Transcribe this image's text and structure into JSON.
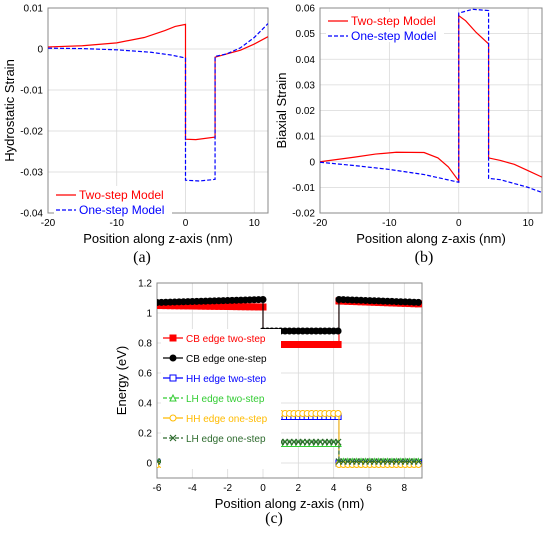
{
  "chart_data": [
    {
      "id": "a",
      "type": "line",
      "panel_label": "(a)",
      "xlabel": "Position along z-axis (nm)",
      "ylabel": "Hydrostatic Strain",
      "xlim": [
        -20,
        12
      ],
      "ylim": [
        -0.04,
        0.01
      ],
      "xticks": [
        -20,
        -10,
        0,
        10
      ],
      "yticks": [
        -0.04,
        -0.03,
        -0.02,
        -0.01,
        0,
        0.01
      ],
      "yticklabels": [
        "-0.04",
        "-0.03",
        "-0.02",
        "-0.01",
        "0",
        "0.01"
      ],
      "grid": true,
      "legend_position": "bottom-left",
      "series": [
        {
          "name": "Two-step Model",
          "color": "#ff0000",
          "dash": "solid",
          "points": [
            [
              -20,
              0.0005
            ],
            [
              -15,
              0.0008
            ],
            [
              -10,
              0.0015
            ],
            [
              -6,
              0.0028
            ],
            [
              -3,
              0.0045
            ],
            [
              -1.5,
              0.0055
            ],
            [
              0,
              0.006
            ],
            [
              0,
              -0.022
            ],
            [
              1.5,
              -0.0221
            ],
            [
              4.3,
              -0.0215
            ],
            [
              4.3,
              -0.002
            ],
            [
              6,
              -0.0012
            ],
            [
              8,
              -0.0003
            ],
            [
              10,
              0.0012
            ],
            [
              12,
              0.003
            ]
          ]
        },
        {
          "name": "One-step Model",
          "color": "#0000ff",
          "dash": "dashed",
          "points": [
            [
              -20,
              0.0002
            ],
            [
              -15,
              0.0001
            ],
            [
              -10,
              -0.0002
            ],
            [
              -5,
              -0.0008
            ],
            [
              -2,
              -0.0015
            ],
            [
              0,
              -0.0022
            ],
            [
              0,
              -0.032
            ],
            [
              2,
              -0.0322
            ],
            [
              4.3,
              -0.0318
            ],
            [
              4.3,
              -0.0018
            ],
            [
              6,
              -0.0012
            ],
            [
              8,
              0.0003
            ],
            [
              10,
              0.0028
            ],
            [
              12,
              0.0062
            ]
          ]
        }
      ]
    },
    {
      "id": "b",
      "type": "line",
      "panel_label": "(b)",
      "xlabel": "Position along z-axis (nm)",
      "ylabel": "Biaxial Strain",
      "xlim": [
        -20,
        12
      ],
      "ylim": [
        -0.02,
        0.06
      ],
      "xticks": [
        -20,
        -10,
        0,
        10
      ],
      "yticks": [
        -0.02,
        -0.01,
        0,
        0.01,
        0.02,
        0.03,
        0.04,
        0.05,
        0.06
      ],
      "yticklabels": [
        "-0.02",
        "-0.01",
        "0",
        "0.01",
        "0.02",
        "0.03",
        "0.04",
        "0.05",
        "0.06"
      ],
      "grid": true,
      "legend_position": "top-left",
      "series": [
        {
          "name": "Two-step Model",
          "color": "#ff0000",
          "dash": "solid",
          "points": [
            [
              -20,
              0.0
            ],
            [
              -15,
              0.0018
            ],
            [
              -12,
              0.003
            ],
            [
              -9,
              0.0037
            ],
            [
              -5,
              0.0036
            ],
            [
              -3,
              0.0015
            ],
            [
              -1.5,
              -0.002
            ],
            [
              0,
              -0.0075
            ],
            [
              0,
              0.057
            ],
            [
              1,
              0.055
            ],
            [
              2.5,
              0.0505
            ],
            [
              4.3,
              0.046
            ],
            [
              4.3,
              0.0015
            ],
            [
              6,
              0.0005
            ],
            [
              8,
              -0.001
            ],
            [
              10,
              -0.0035
            ],
            [
              12,
              -0.006
            ]
          ]
        },
        {
          "name": "One-step Model",
          "color": "#0000ff",
          "dash": "dashed",
          "points": [
            [
              -20,
              -0.0002
            ],
            [
              -15,
              -0.0015
            ],
            [
              -10,
              -0.003
            ],
            [
              -5,
              -0.005
            ],
            [
              -2,
              -0.0068
            ],
            [
              0,
              -0.008
            ],
            [
              0,
              0.058
            ],
            [
              2,
              0.0595
            ],
            [
              4.3,
              0.059
            ],
            [
              4.3,
              -0.0065
            ],
            [
              6,
              -0.007
            ],
            [
              8,
              -0.0085
            ],
            [
              10,
              -0.01
            ],
            [
              12,
              -0.012
            ]
          ]
        }
      ]
    },
    {
      "id": "c",
      "type": "line",
      "panel_label": "(c)",
      "xlabel": "Position along z-axis (nm)",
      "ylabel": "Energy (eV)",
      "xlim": [
        -6,
        9
      ],
      "ylim": [
        -0.1,
        1.2
      ],
      "xticks": [
        -6,
        -4,
        -2,
        0,
        2,
        4,
        6,
        8
      ],
      "yticks": [
        0,
        0.2,
        0.4,
        0.6,
        0.8,
        1,
        1.2
      ],
      "yticklabels": [
        "0",
        "0.2",
        "0.4",
        "0.6",
        "0.8",
        "1",
        "1.2"
      ],
      "grid": true,
      "legend_position": "left",
      "series": [
        {
          "name": "CB edge two-step",
          "color": "#ff0000",
          "marker": "square",
          "marker_fill": "#ff0000",
          "dash": "solid",
          "segments": [
            [
              [
                -6,
                1.05
              ],
              [
                0,
                1.04
              ]
            ],
            [
              [
                0,
                0.79
              ],
              [
                4.3,
                0.79
              ]
            ],
            [
              [
                4.3,
                1.08
              ],
              [
                9,
                1.06
              ]
            ]
          ]
        },
        {
          "name": "CB edge one-step",
          "color": "#000000",
          "marker": "circle",
          "marker_fill": "#000000",
          "dash": "solid",
          "segments": [
            [
              [
                -6,
                1.07
              ],
              [
                0,
                1.09
              ]
            ],
            [
              [
                0,
                0.88
              ],
              [
                4.3,
                0.88
              ]
            ],
            [
              [
                4.3,
                1.09
              ],
              [
                9,
                1.07
              ]
            ]
          ]
        },
        {
          "name": "HH edge two-step",
          "color": "#0000ff",
          "marker": "square",
          "marker_fill": "none",
          "dash": "solid",
          "segments": [
            [
              [
                -6,
                0.0
              ],
              [
                0,
                0.0
              ]
            ],
            [
              [
                0,
                0.31
              ],
              [
                4.3,
                0.31
              ]
            ],
            [
              [
                4.3,
                0.0
              ],
              [
                9,
                0.0
              ]
            ]
          ]
        },
        {
          "name": "LH edge two-step",
          "color": "#33cc33",
          "marker": "triangle",
          "marker_fill": "none",
          "dash": "dashed",
          "segments": [
            [
              [
                -6,
                0.0
              ],
              [
                0,
                0.0
              ]
            ],
            [
              [
                0,
                0.13
              ],
              [
                4.3,
                0.13
              ]
            ],
            [
              [
                4.3,
                0.01
              ],
              [
                9,
                0.01
              ]
            ]
          ]
        },
        {
          "name": "HH edge one-step",
          "color": "#ffbb00",
          "marker": "circle",
          "marker_fill": "none",
          "dash": "solid",
          "segments": [
            [
              [
                -6,
                -0.01
              ],
              [
                0,
                -0.01
              ]
            ],
            [
              [
                0,
                0.33
              ],
              [
                4.3,
                0.33
              ]
            ],
            [
              [
                4.3,
                -0.01
              ],
              [
                9,
                -0.01
              ]
            ]
          ]
        },
        {
          "name": "LH edge one-step",
          "color": "#2e6b2e",
          "marker": "x",
          "marker_fill": "none",
          "dash": "dashed",
          "segments": [
            [
              [
                -6,
                0.01
              ],
              [
                0,
                0.01
              ]
            ],
            [
              [
                0,
                0.14
              ],
              [
                4.3,
                0.14
              ]
            ],
            [
              [
                4.3,
                0.01
              ],
              [
                9,
                0.01
              ]
            ]
          ]
        }
      ]
    }
  ]
}
